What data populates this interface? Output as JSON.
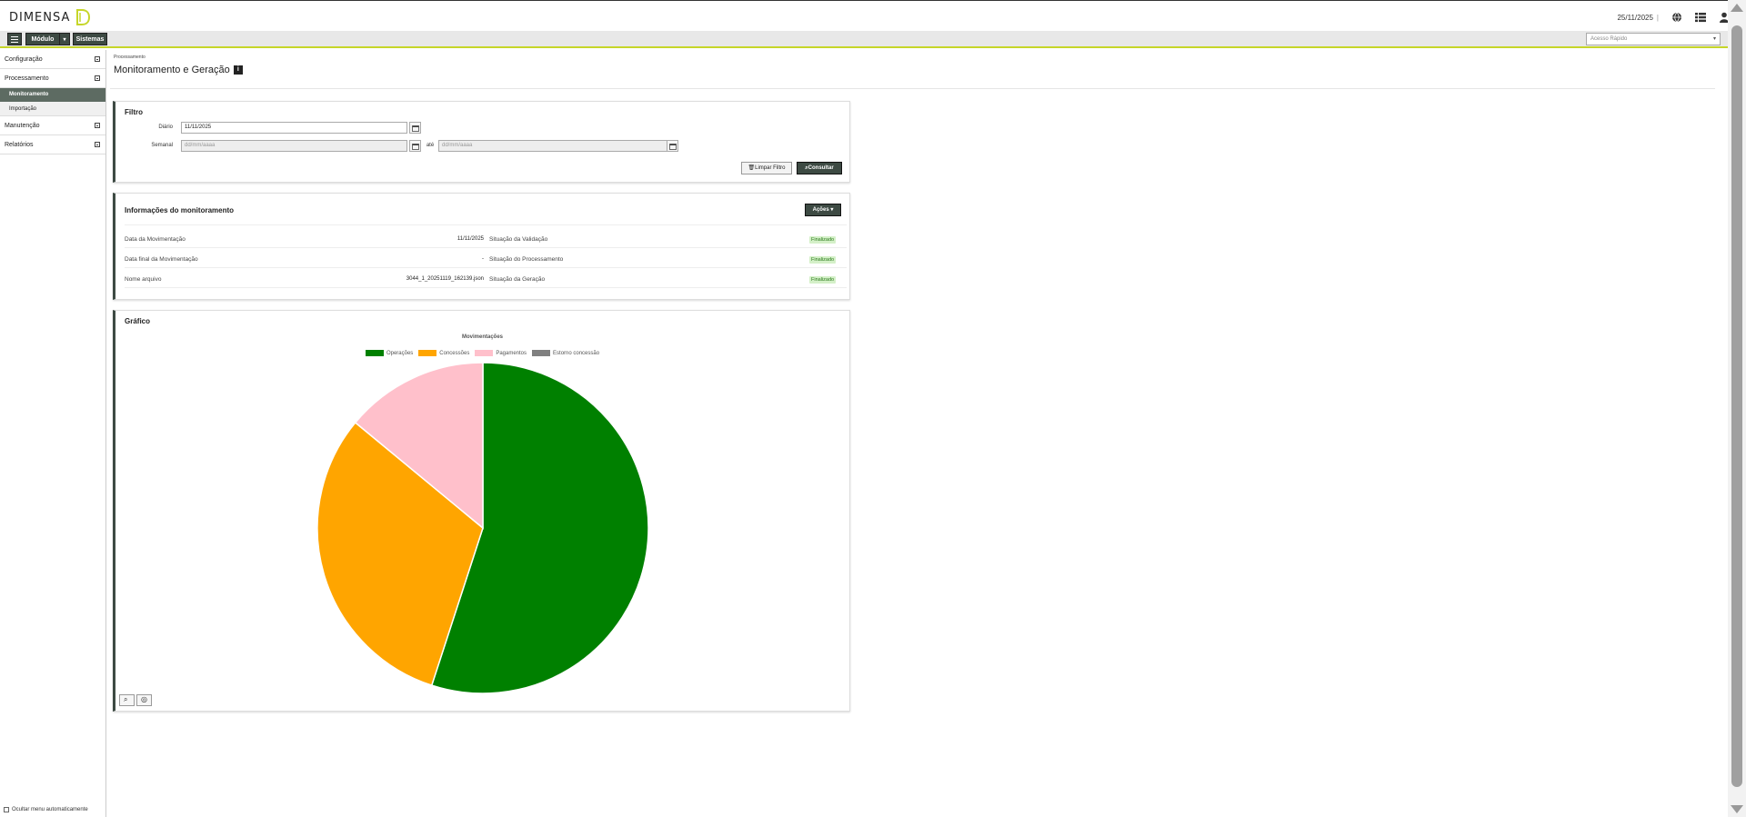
{
  "header": {
    "logo_text": "DIMENSA",
    "date": "25/11/2025",
    "separator": "|"
  },
  "navbar": {
    "module_label": "Módulo",
    "systems_label": "Sistemas",
    "quick_access_placeholder": "Acesso Rápido"
  },
  "sidebar": {
    "items": [
      {
        "label": "Configuração"
      },
      {
        "label": "Processamento"
      },
      {
        "label": "Monitoramento"
      },
      {
        "label": "Importação"
      },
      {
        "label": "Manutenção"
      },
      {
        "label": "Relatórios"
      }
    ],
    "auto_hide_label": "Ocultar menu automaticamente"
  },
  "page": {
    "breadcrumb": "Processamento",
    "title": "Monitoramento e Geração",
    "info_icon": "i"
  },
  "filter": {
    "title": "Filtro",
    "daily_label": "Diário",
    "daily_value": "11/11/2025",
    "weekly_label": "Semanal",
    "weekly_from_placeholder": "dd/mm/aaaa",
    "weekly_to_label": "até",
    "weekly_to_placeholder": "dd/mm/aaaa",
    "clear_label": "Limpar Filtro",
    "search_label": "Consultar"
  },
  "monitoring": {
    "title": "Informações do monitoramento",
    "actions_label": "Ações",
    "rows": [
      {
        "label": "Data da Movimentação",
        "value": "11/11/2025",
        "status_label": "Situação da Validação",
        "status": "Finalizado"
      },
      {
        "label": "Data final da Movimentação",
        "value": "-",
        "status_label": "Situação do Processamento",
        "status": "Finalizado"
      },
      {
        "label": "Nome arquivo",
        "value": "3044_1_20251119_162139.json",
        "status_label": "Situação da Geração",
        "status": "Finalizado"
      }
    ]
  },
  "graph_panel": {
    "title": "Gráfico"
  },
  "chart_data": {
    "type": "pie",
    "title": "Movimentações",
    "legend_position": "top",
    "categories": [
      "Operações",
      "Concessões",
      "Pagamentos",
      "Estorno concessão"
    ],
    "values": [
      55,
      31,
      14,
      0
    ],
    "colors": [
      "#008000",
      "#FFA500",
      "#FFC0CB",
      "#808080"
    ]
  }
}
